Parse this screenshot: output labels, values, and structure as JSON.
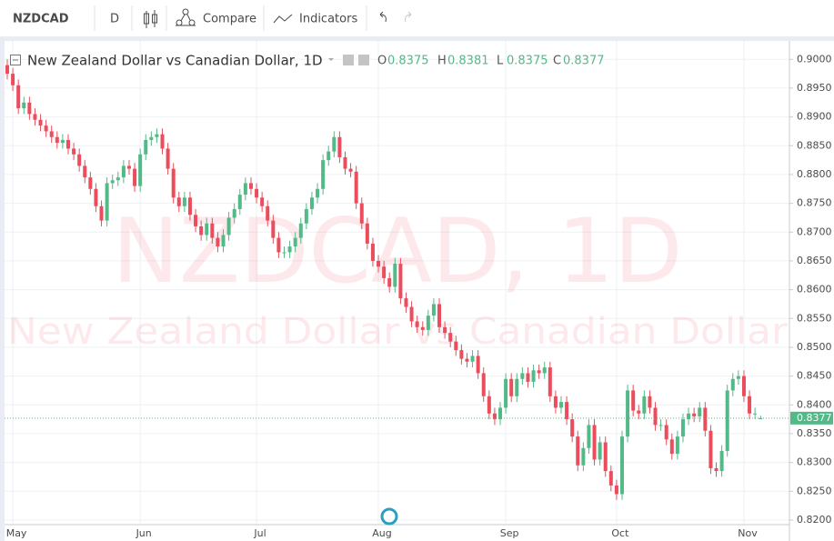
{
  "toolbar": {
    "symbol": "NZDCAD",
    "interval": "D",
    "compare": "Compare",
    "indicators": "Indicators"
  },
  "chart_data": {
    "type": "candlestick",
    "title": "New Zealand Dollar vs Canadian Dollar, 1D",
    "watermark": {
      "symbol": "NZDCAD, 1D",
      "description": "New Zealand Dollar vs Canadian Dollar"
    },
    "ohlc_labels": [
      "O",
      "H",
      "L",
      "C"
    ],
    "categories": [
      null,
      "May",
      null,
      null,
      null,
      null,
      null,
      null,
      null,
      null,
      null,
      null,
      null,
      null,
      null,
      null,
      null,
      null,
      null,
      null,
      null,
      null,
      null,
      null,
      "Jun",
      null,
      null,
      null,
      null,
      null,
      null,
      null,
      null,
      null,
      null,
      null,
      null,
      null,
      null,
      null,
      null,
      null,
      null,
      null,
      null,
      "Jul",
      null,
      null,
      null,
      null,
      null,
      null,
      null,
      null,
      null,
      null,
      null,
      null,
      null,
      null,
      null,
      null,
      null,
      null,
      null,
      null,
      null,
      "Aug",
      null,
      null,
      null,
      null,
      null,
      null,
      null,
      null,
      null,
      null,
      null,
      null,
      null,
      null,
      null,
      null,
      null,
      null,
      null,
      null,
      null,
      null,
      "Sep",
      null,
      null,
      null,
      null,
      null,
      null,
      null,
      null,
      null,
      null,
      null,
      null,
      null,
      null,
      null,
      null,
      null,
      null,
      null,
      "Oct",
      null,
      null,
      null,
      null,
      null,
      null,
      null,
      null,
      null,
      null,
      null,
      null,
      null,
      null,
      null,
      null,
      null,
      null,
      null,
      null,
      null,
      null,
      "Nov",
      null,
      null,
      null
    ],
    "open": [
      0.899,
      0.8975,
      0.8955,
      0.8915,
      0.8925,
      0.8905,
      0.8895,
      0.8885,
      0.8875,
      0.8865,
      0.8855,
      0.886,
      0.8845,
      0.8835,
      0.8815,
      0.8795,
      0.8775,
      0.8745,
      0.872,
      0.8785,
      0.879,
      0.8795,
      0.8815,
      0.881,
      0.878,
      0.8835,
      0.886,
      0.8865,
      0.887,
      0.8845,
      0.881,
      0.876,
      0.8745,
      0.876,
      0.873,
      0.871,
      0.8695,
      0.8715,
      0.869,
      0.8675,
      0.8695,
      0.8725,
      0.874,
      0.8765,
      0.8785,
      0.8775,
      0.876,
      0.8745,
      0.872,
      0.869,
      0.8665,
      0.8665,
      0.8675,
      0.869,
      0.8715,
      0.874,
      0.876,
      0.8775,
      0.8825,
      0.884,
      0.8865,
      0.883,
      0.881,
      0.8805,
      0.875,
      0.8715,
      0.868,
      0.865,
      0.864,
      0.862,
      0.8605,
      0.8645,
      0.8585,
      0.857,
      0.8545,
      0.8535,
      0.853,
      0.8555,
      0.8575,
      0.8535,
      0.8525,
      0.851,
      0.8495,
      0.848,
      0.8475,
      0.8485,
      0.8455,
      0.8415,
      0.8385,
      0.8375,
      0.8395,
      0.8445,
      0.8415,
      0.8445,
      0.8455,
      0.844,
      0.846,
      0.8455,
      0.8465,
      0.8415,
      0.8395,
      0.8405,
      0.8375,
      0.8345,
      0.8295,
      0.8325,
      0.8365,
      0.8305,
      0.8335,
      0.8285,
      0.826,
      0.8245,
      0.8345,
      0.8425,
      0.839,
      0.8385,
      0.8415,
      0.8395,
      0.8365,
      0.8365,
      0.834,
      0.8315,
      0.8345,
      0.8375,
      0.8385,
      0.838,
      0.8395,
      0.8355,
      0.829,
      0.8285,
      0.832,
      0.8425,
      0.8445,
      0.845,
      0.8415,
      0.8385,
      0.8375
    ],
    "high": [
      0.9,
      0.8985,
      0.8965,
      0.8935,
      0.8935,
      0.8915,
      0.8905,
      0.8895,
      0.8885,
      0.8875,
      0.887,
      0.887,
      0.8855,
      0.8845,
      0.8825,
      0.8805,
      0.8785,
      0.8755,
      0.8795,
      0.88,
      0.8805,
      0.8825,
      0.8825,
      0.882,
      0.8845,
      0.887,
      0.8875,
      0.888,
      0.888,
      0.8855,
      0.882,
      0.877,
      0.877,
      0.877,
      0.874,
      0.872,
      0.8725,
      0.8725,
      0.87,
      0.8705,
      0.8735,
      0.875,
      0.8775,
      0.8795,
      0.8795,
      0.8785,
      0.877,
      0.8755,
      0.873,
      0.87,
      0.8675,
      0.8685,
      0.87,
      0.8725,
      0.875,
      0.877,
      0.8785,
      0.8835,
      0.885,
      0.8875,
      0.8875,
      0.884,
      0.882,
      0.8815,
      0.876,
      0.8725,
      0.869,
      0.866,
      0.865,
      0.863,
      0.8655,
      0.8655,
      0.8595,
      0.858,
      0.8555,
      0.8545,
      0.8565,
      0.8585,
      0.8585,
      0.8545,
      0.8535,
      0.852,
      0.8505,
      0.849,
      0.8495,
      0.8495,
      0.8465,
      0.8425,
      0.8395,
      0.8405,
      0.8455,
      0.8455,
      0.8455,
      0.8465,
      0.8465,
      0.847,
      0.847,
      0.8475,
      0.8475,
      0.8425,
      0.8415,
      0.8415,
      0.8385,
      0.8355,
      0.8335,
      0.8375,
      0.8375,
      0.8345,
      0.8345,
      0.8295,
      0.827,
      0.8355,
      0.8435,
      0.8435,
      0.84,
      0.8425,
      0.8425,
      0.8405,
      0.8375,
      0.8375,
      0.835,
      0.8355,
      0.8385,
      0.8395,
      0.8395,
      0.8405,
      0.8405,
      0.8365,
      0.83,
      0.833,
      0.8435,
      0.8455,
      0.846,
      0.846,
      0.8425,
      0.8395,
      0.8381
    ],
    "low": [
      0.8965,
      0.8945,
      0.8905,
      0.8905,
      0.8895,
      0.8885,
      0.8875,
      0.8865,
      0.8855,
      0.8845,
      0.8845,
      0.8835,
      0.8825,
      0.8805,
      0.8785,
      0.8765,
      0.8735,
      0.871,
      0.871,
      0.8775,
      0.878,
      0.8785,
      0.88,
      0.877,
      0.877,
      0.8825,
      0.885,
      0.8855,
      0.8835,
      0.88,
      0.875,
      0.8735,
      0.8735,
      0.872,
      0.87,
      0.8685,
      0.8685,
      0.868,
      0.8665,
      0.8665,
      0.8685,
      0.8715,
      0.873,
      0.8755,
      0.8765,
      0.875,
      0.8735,
      0.871,
      0.868,
      0.8655,
      0.8655,
      0.8655,
      0.8665,
      0.868,
      0.8705,
      0.873,
      0.875,
      0.8765,
      0.8815,
      0.883,
      0.882,
      0.88,
      0.8795,
      0.874,
      0.8705,
      0.867,
      0.864,
      0.863,
      0.861,
      0.8595,
      0.8595,
      0.8575,
      0.856,
      0.8535,
      0.8525,
      0.852,
      0.852,
      0.8545,
      0.8525,
      0.8515,
      0.85,
      0.8485,
      0.847,
      0.8465,
      0.8465,
      0.8445,
      0.8405,
      0.8375,
      0.8365,
      0.8365,
      0.8385,
      0.8405,
      0.8405,
      0.8435,
      0.843,
      0.843,
      0.8445,
      0.8445,
      0.8405,
      0.8385,
      0.8385,
      0.8365,
      0.8335,
      0.8285,
      0.8285,
      0.8315,
      0.8295,
      0.8295,
      0.8275,
      0.825,
      0.8235,
      0.8235,
      0.8335,
      0.838,
      0.8375,
      0.8375,
      0.8385,
      0.8355,
      0.8355,
      0.833,
      0.8305,
      0.8305,
      0.8335,
      0.8365,
      0.837,
      0.837,
      0.8345,
      0.828,
      0.8275,
      0.8275,
      0.831,
      0.8415,
      0.8435,
      0.8405,
      0.8375,
      0.8375,
      0.8375
    ],
    "close": [
      0.8975,
      0.8955,
      0.8915,
      0.8925,
      0.8905,
      0.8895,
      0.8885,
      0.8875,
      0.8865,
      0.8855,
      0.886,
      0.8845,
      0.8835,
      0.8815,
      0.8795,
      0.8775,
      0.8745,
      0.872,
      0.8785,
      0.879,
      0.8795,
      0.8815,
      0.881,
      0.878,
      0.8835,
      0.886,
      0.8865,
      0.887,
      0.8845,
      0.881,
      0.876,
      0.8745,
      0.876,
      0.873,
      0.871,
      0.8695,
      0.8715,
      0.869,
      0.8675,
      0.8695,
      0.8725,
      0.874,
      0.8765,
      0.8785,
      0.8775,
      0.876,
      0.8745,
      0.872,
      0.869,
      0.8665,
      0.8665,
      0.8675,
      0.869,
      0.8715,
      0.874,
      0.876,
      0.8775,
      0.8825,
      0.884,
      0.8865,
      0.883,
      0.881,
      0.8805,
      0.875,
      0.8715,
      0.868,
      0.865,
      0.864,
      0.862,
      0.8605,
      0.8645,
      0.8585,
      0.857,
      0.8545,
      0.8535,
      0.853,
      0.8555,
      0.8575,
      0.8535,
      0.8525,
      0.851,
      0.8495,
      0.848,
      0.8475,
      0.8485,
      0.8455,
      0.8415,
      0.8385,
      0.8375,
      0.8395,
      0.8445,
      0.8415,
      0.8445,
      0.8455,
      0.844,
      0.846,
      0.8455,
      0.8465,
      0.8415,
      0.8395,
      0.8405,
      0.8375,
      0.8345,
      0.8295,
      0.8325,
      0.8365,
      0.8305,
      0.8335,
      0.8285,
      0.826,
      0.8245,
      0.8345,
      0.8425,
      0.839,
      0.8385,
      0.8415,
      0.8395,
      0.8365,
      0.8365,
      0.834,
      0.8315,
      0.8345,
      0.8375,
      0.8385,
      0.838,
      0.8395,
      0.8355,
      0.829,
      0.8285,
      0.832,
      0.8425,
      0.8445,
      0.845,
      0.8415,
      0.8385,
      0.8385,
      0.8377
    ],
    "up_color": "#53b987",
    "down_color": "#eb4d5c",
    "ylim": [
      0.8192,
      0.9032
    ],
    "yticks": [
      {
        "value": 0.82,
        "label": "0.8200"
      },
      {
        "value": 0.825,
        "label": "0.8250"
      },
      {
        "value": 0.83,
        "label": "0.8300"
      },
      {
        "value": 0.835,
        "label": "0.8350"
      },
      {
        "value": 0.84,
        "label": "0.8400"
      },
      {
        "value": 0.845,
        "label": "0.8450"
      },
      {
        "value": 0.85,
        "label": "0.8500"
      },
      {
        "value": 0.855,
        "label": "0.8550"
      },
      {
        "value": 0.86,
        "label": "0.8600"
      },
      {
        "value": 0.865,
        "label": "0.8650"
      },
      {
        "value": 0.87,
        "label": "0.8700"
      },
      {
        "value": 0.875,
        "label": "0.8750"
      },
      {
        "value": 0.88,
        "label": "0.8800"
      },
      {
        "value": 0.885,
        "label": "0.8850"
      },
      {
        "value": 0.89,
        "label": "0.8900"
      },
      {
        "value": 0.895,
        "label": "0.8950"
      },
      {
        "value": 0.9,
        "label": "0.9000"
      }
    ],
    "grid": true
  }
}
